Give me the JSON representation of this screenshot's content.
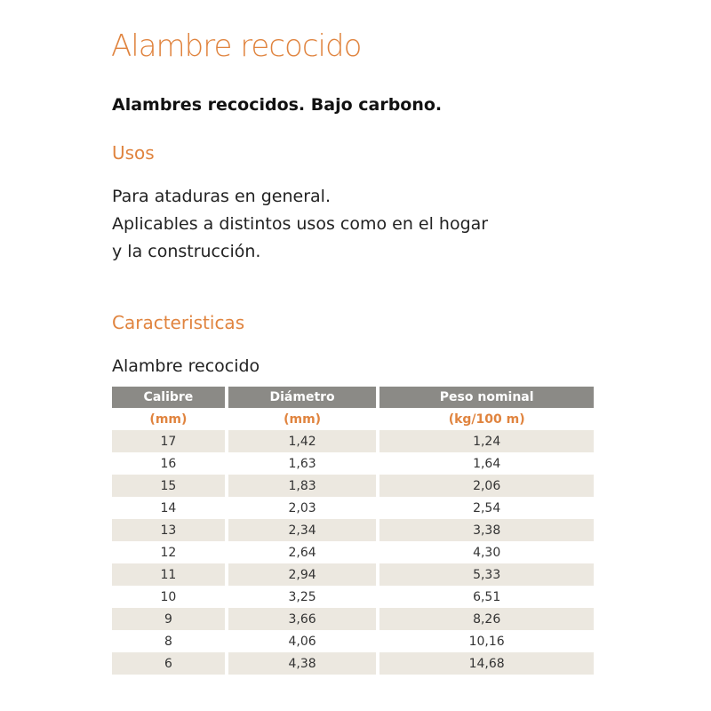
{
  "title": "Alambre recocido",
  "subtitle": "Alambres recocidos. Bajo carbono.",
  "usos": {
    "heading": "Usos",
    "lines": [
      "Para ataduras en general.",
      "Aplicables a distintos usos como en el hogar",
      "y la construcción."
    ]
  },
  "caracteristicas": {
    "heading": "Caracteristicas",
    "table_title": "Alambre recocido",
    "headers": [
      "Calibre",
      "Diámetro",
      "Peso nominal"
    ],
    "units": [
      "(mm)",
      "(mm)",
      "(kg/100 m)"
    ],
    "rows": [
      [
        "17",
        "1,42",
        "1,24"
      ],
      [
        "16",
        "1,63",
        "1,64"
      ],
      [
        "15",
        "1,83",
        "2,06"
      ],
      [
        "14",
        "2,03",
        "2,54"
      ],
      [
        "13",
        "2,34",
        "3,38"
      ],
      [
        "12",
        "2,64",
        "4,30"
      ],
      [
        "11",
        "2,94",
        "5,33"
      ],
      [
        "10",
        "3,25",
        "6,51"
      ],
      [
        "9",
        "3,66",
        "8,26"
      ],
      [
        "8",
        "4,06",
        "10,16"
      ],
      [
        "6",
        "4,38",
        "14,68"
      ]
    ]
  },
  "colors": {
    "accent": "#e0843f",
    "header_bg": "#8b8a86",
    "row_shade": "#ece8e0"
  }
}
